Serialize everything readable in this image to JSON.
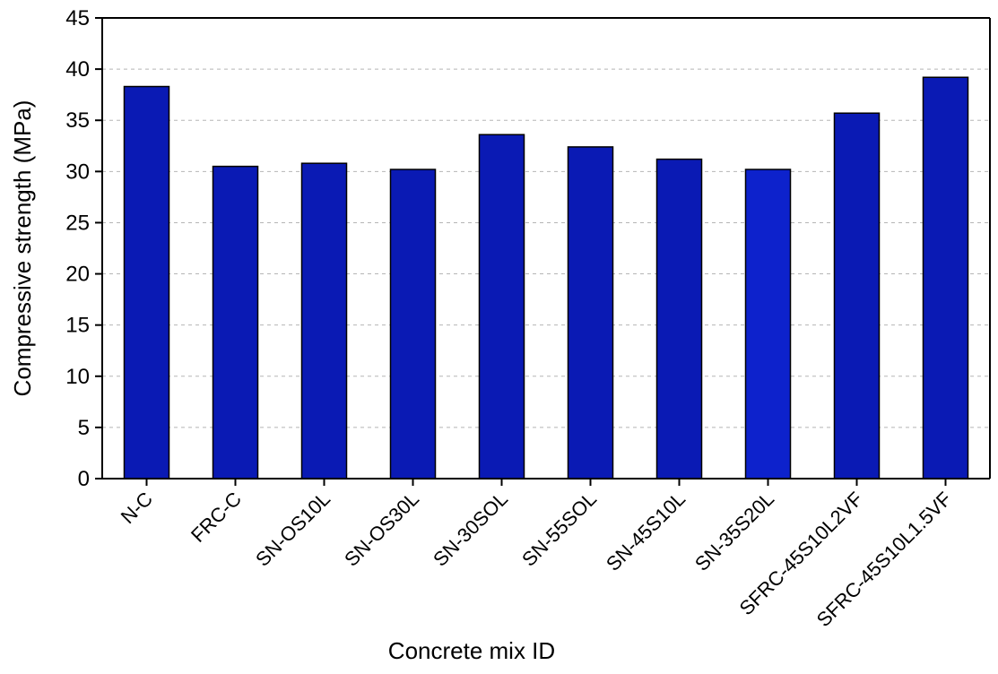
{
  "chart_data": {
    "type": "bar",
    "categories": [
      "N-C",
      "FRC-C",
      "SN-OS10L",
      "SN-OS30L",
      "SN-30SOL",
      "SN-55SOL",
      "SN-45S10L",
      "SN-35S20L",
      "SFRC-45S10L2VF",
      "SFRC-45S10L1.5VF"
    ],
    "values": [
      38.3,
      30.5,
      30.8,
      30.2,
      33.6,
      32.4,
      31.2,
      30.2,
      35.7,
      39.2
    ],
    "title": "",
    "xlabel": "Concrete mix ID",
    "ylabel": "Compressive strength (MPa)",
    "ylim": [
      0,
      45
    ],
    "yticks": [
      0,
      5,
      10,
      15,
      20,
      25,
      30,
      35,
      40,
      45
    ],
    "grid": "horizontal dashed",
    "legend": "none",
    "bar_color": "#0A1AB4",
    "highlighted_bar_color": "#0D22CC",
    "highlighted_index": 7
  }
}
